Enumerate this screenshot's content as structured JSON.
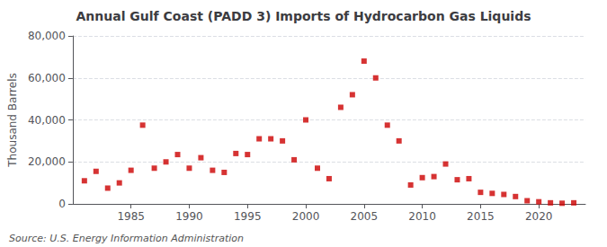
{
  "chart_data": {
    "type": "scatter",
    "title": "Annual Gulf Coast (PADD 3) Imports of Hydrocarbon Gas Liquids",
    "ylabel": "Thousand Barrels",
    "annotation": "Source: U.S. Energy Information Administration",
    "x": [
      1981,
      1982,
      1983,
      1984,
      1985,
      1986,
      1987,
      1988,
      1989,
      1990,
      1991,
      1992,
      1993,
      1994,
      1995,
      1996,
      1997,
      1998,
      1999,
      2000,
      2001,
      2002,
      2003,
      2004,
      2005,
      2006,
      2007,
      2008,
      2009,
      2010,
      2011,
      2012,
      2013,
      2014,
      2015,
      2016,
      2017,
      2018,
      2019,
      2020,
      2021,
      2022,
      2023
    ],
    "values": [
      11000,
      15500,
      7500,
      10000,
      16000,
      37500,
      17000,
      20000,
      23500,
      17000,
      22000,
      16000,
      15000,
      24000,
      23500,
      31000,
      31000,
      30000,
      21000,
      40000,
      17000,
      12000,
      46000,
      52000,
      68000,
      60000,
      37500,
      30000,
      9000,
      12500,
      13000,
      19000,
      11500,
      12000,
      5500,
      5000,
      4500,
      3500,
      1500,
      1000,
      500,
      300,
      500
    ],
    "color": "#cc0000",
    "marker": "square",
    "xlim": [
      1980,
      2024
    ],
    "xticks": [
      1985,
      1990,
      1995,
      2000,
      2005,
      2010,
      2015,
      2020
    ],
    "ylim": [
      0,
      80000
    ],
    "yticks": [
      0,
      {
        "value": 20000,
        "label": "20,000"
      },
      {
        "value": 40000,
        "label": "40,000"
      },
      {
        "value": 60000,
        "label": "60,000"
      },
      {
        "value": 80000,
        "label": "80,000"
      }
    ],
    "grid": true
  }
}
